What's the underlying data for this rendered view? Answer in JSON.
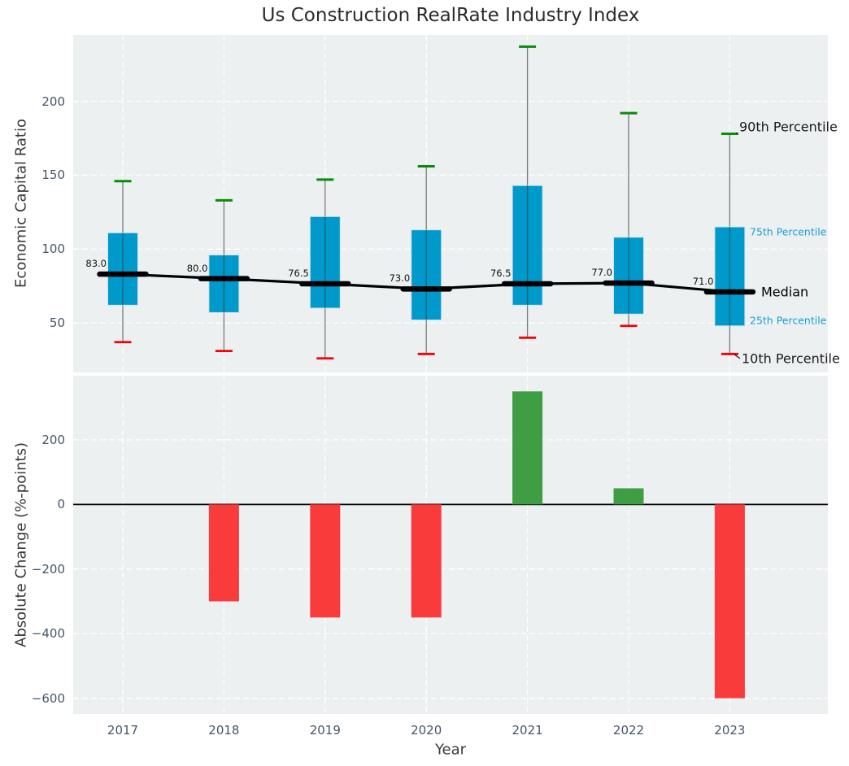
{
  "title": "Us Construction RealRate Industry Index",
  "colors": {
    "plot_bg": "#ecf0f1",
    "grid": "#ffffff",
    "box_fill": "#0099cb",
    "box_edge": "#cfe4ef",
    "whisker": "#7a7a7a",
    "cap_top_green": "#078d07",
    "cap_bottom_red": "#f40202",
    "median_black": "#000000",
    "bar_positive_green": "#3f9e43",
    "bar_negative_red": "#f93b3b",
    "tick_text": "#45566a",
    "axis_label_text": "#3a3a3a",
    "title_text": "#2b2b2b",
    "annotation_blue": "#1b9ed6",
    "annotation_black": "#1a1a1a"
  },
  "chart_data": [
    {
      "type": "boxplot",
      "title": "Us Construction RealRate Industry Index",
      "ylabel": "Economic Capital Ratio",
      "categories": [
        "2017",
        "2018",
        "2019",
        "2020",
        "2021",
        "2022",
        "2023"
      ],
      "box_percentiles": [
        25,
        75
      ],
      "whisker_percentiles": [
        10,
        90
      ],
      "series": [
        {
          "year": "2017",
          "p10": 37,
          "p25": 62,
          "median": 83,
          "p75": 111,
          "p90": 146,
          "median_label": "83.0"
        },
        {
          "year": "2018",
          "p10": 31,
          "p25": 57,
          "median": 80,
          "p75": 96,
          "p90": 133,
          "median_label": "80.0"
        },
        {
          "year": "2019",
          "p10": 26,
          "p25": 60,
          "median": 76.5,
          "p75": 122,
          "p90": 147,
          "median_label": "76.5"
        },
        {
          "year": "2020",
          "p10": 29,
          "p25": 52,
          "median": 73,
          "p75": 113,
          "p90": 156,
          "median_label": "73.0"
        },
        {
          "year": "2021",
          "p10": 40,
          "p25": 62,
          "median": 76.5,
          "p75": 143,
          "p90": 237,
          "median_label": "76.5"
        },
        {
          "year": "2022",
          "p10": 48,
          "p25": 56,
          "median": 77,
          "p75": 108,
          "p90": 192,
          "median_label": "77.0"
        },
        {
          "year": "2023",
          "p10": 29,
          "p25": 48,
          "median": 71,
          "p75": 115,
          "p90": 178,
          "median_label": "71.0"
        }
      ],
      "yticks": [
        {
          "value": 50,
          "label": "50"
        },
        {
          "value": 100,
          "label": "100"
        },
        {
          "value": 150,
          "label": "150"
        },
        {
          "value": 200,
          "label": "200"
        }
      ],
      "ylim": [
        16.5,
        244.9
      ],
      "grid": true,
      "legend_position": "right-annotations",
      "annotations": [
        {
          "label": "90th Percentile",
          "anchor": "p90",
          "size": "large",
          "color": "#1a1a1a"
        },
        {
          "label": "75th Percentile",
          "anchor": "p75",
          "size": "small",
          "color": "#1b9ed6"
        },
        {
          "label": "Median",
          "anchor": "median",
          "size": "large",
          "color": "#000000"
        },
        {
          "label": "25th Percentile",
          "anchor": "p25",
          "size": "small",
          "color": "#1b9ed6"
        },
        {
          "label": "10th Percentile",
          "anchor": "p10",
          "size": "large",
          "color": "#1a1a1a"
        }
      ]
    },
    {
      "type": "bar",
      "ylabel": "Absolute Change (%-points)",
      "xlabel": "Year",
      "categories": [
        "2017",
        "2018",
        "2019",
        "2020",
        "2021",
        "2022",
        "2023"
      ],
      "values": [
        null,
        -300,
        -350,
        -350,
        350,
        50,
        -600
      ],
      "yticks": [
        {
          "value": 200,
          "label": "200"
        },
        {
          "value": 0,
          "label": "0"
        },
        {
          "value": -200,
          "label": "−200"
        },
        {
          "value": -400,
          "label": "−400"
        },
        {
          "value": -600,
          "label": "−600"
        }
      ],
      "ylim": [
        -648.6,
        398.6
      ],
      "grid": true
    }
  ]
}
